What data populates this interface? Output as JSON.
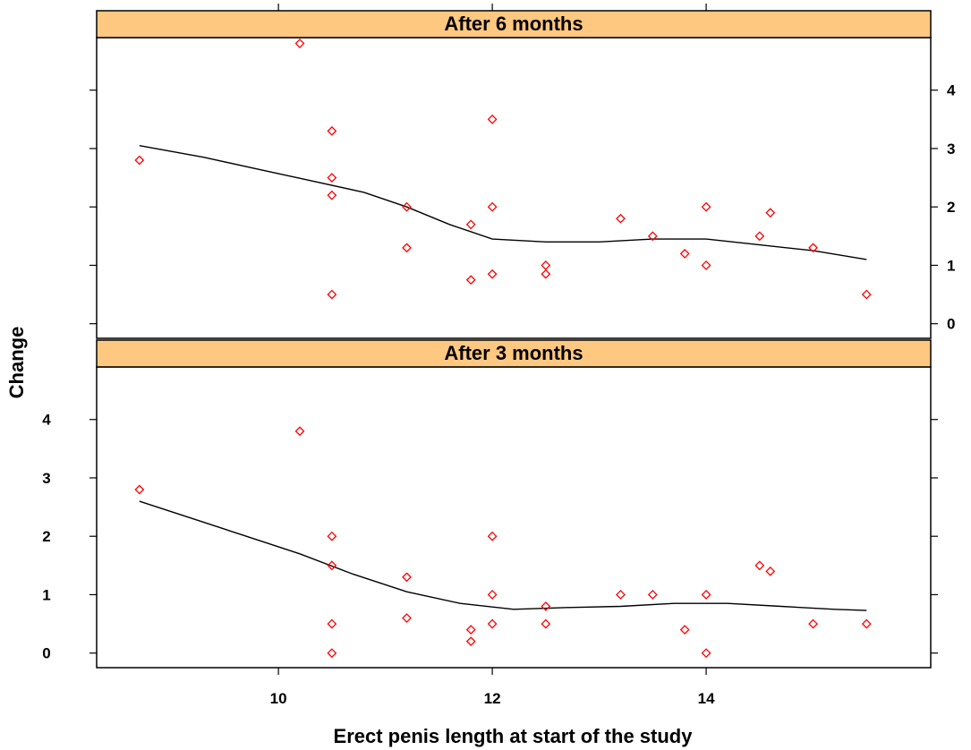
{
  "chart_data": {
    "type": "scatter",
    "xlabel": "Erect penis length at start of the study",
    "ylabel": "Change",
    "xlim": [
      8.3,
      16.1
    ],
    "ylim": [
      -0.25,
      4.9
    ],
    "x_ticks": [
      "10",
      "12",
      "14"
    ],
    "x_tick_values": [
      10,
      12,
      14
    ],
    "y_ticks": [
      "0",
      "1",
      "2",
      "3",
      "4"
    ],
    "y_tick_values": [
      0,
      1,
      2,
      3,
      4
    ],
    "point_color": "#ff0000",
    "line_color": "#000000",
    "strip_color": "#ffc880",
    "panels": [
      {
        "title": "After 6 months",
        "y_tick_side": "right",
        "points": [
          [
            8.7,
            2.8
          ],
          [
            10.2,
            4.8
          ],
          [
            10.5,
            3.3
          ],
          [
            10.5,
            2.5
          ],
          [
            10.5,
            2.2
          ],
          [
            10.5,
            0.5
          ],
          [
            11.2,
            2.0
          ],
          [
            11.2,
            1.3
          ],
          [
            11.8,
            1.7
          ],
          [
            11.8,
            0.75
          ],
          [
            12.0,
            3.5
          ],
          [
            12.0,
            2.0
          ],
          [
            12.0,
            0.85
          ],
          [
            12.5,
            1.0
          ],
          [
            12.5,
            0.85
          ],
          [
            13.2,
            1.8
          ],
          [
            13.5,
            1.5
          ],
          [
            13.8,
            1.2
          ],
          [
            14.0,
            2.0
          ],
          [
            14.0,
            1.0
          ],
          [
            14.5,
            1.5
          ],
          [
            14.6,
            1.9
          ],
          [
            15.0,
            1.3
          ],
          [
            15.5,
            0.5
          ]
        ],
        "smooth": [
          [
            8.7,
            3.05
          ],
          [
            9.3,
            2.85
          ],
          [
            9.8,
            2.65
          ],
          [
            10.3,
            2.45
          ],
          [
            10.8,
            2.25
          ],
          [
            11.2,
            2.0
          ],
          [
            11.6,
            1.7
          ],
          [
            12.0,
            1.45
          ],
          [
            12.5,
            1.4
          ],
          [
            13.0,
            1.4
          ],
          [
            13.5,
            1.45
          ],
          [
            14.0,
            1.45
          ],
          [
            14.5,
            1.35
          ],
          [
            15.0,
            1.25
          ],
          [
            15.5,
            1.1
          ]
        ]
      },
      {
        "title": "After 3 months",
        "y_tick_side": "left",
        "points": [
          [
            8.7,
            2.8
          ],
          [
            10.2,
            3.8
          ],
          [
            10.5,
            2.0
          ],
          [
            10.5,
            1.5
          ],
          [
            10.5,
            0.5
          ],
          [
            10.5,
            0.0
          ],
          [
            11.2,
            1.3
          ],
          [
            11.2,
            0.6
          ],
          [
            11.8,
            0.4
          ],
          [
            11.8,
            0.2
          ],
          [
            12.0,
            2.0
          ],
          [
            12.0,
            1.0
          ],
          [
            12.0,
            0.5
          ],
          [
            12.5,
            0.8
          ],
          [
            12.5,
            0.5
          ],
          [
            13.2,
            1.0
          ],
          [
            13.5,
            1.0
          ],
          [
            13.8,
            0.4
          ],
          [
            14.0,
            1.0
          ],
          [
            14.0,
            0.0
          ],
          [
            14.5,
            1.5
          ],
          [
            14.6,
            1.4
          ],
          [
            15.0,
            0.5
          ],
          [
            15.5,
            0.5
          ]
        ],
        "smooth": [
          [
            8.7,
            2.6
          ],
          [
            9.2,
            2.3
          ],
          [
            9.7,
            2.0
          ],
          [
            10.2,
            1.7
          ],
          [
            10.7,
            1.35
          ],
          [
            11.2,
            1.05
          ],
          [
            11.7,
            0.85
          ],
          [
            12.2,
            0.75
          ],
          [
            12.7,
            0.78
          ],
          [
            13.2,
            0.8
          ],
          [
            13.7,
            0.85
          ],
          [
            14.2,
            0.85
          ],
          [
            14.7,
            0.8
          ],
          [
            15.2,
            0.75
          ],
          [
            15.5,
            0.73
          ]
        ]
      }
    ]
  }
}
